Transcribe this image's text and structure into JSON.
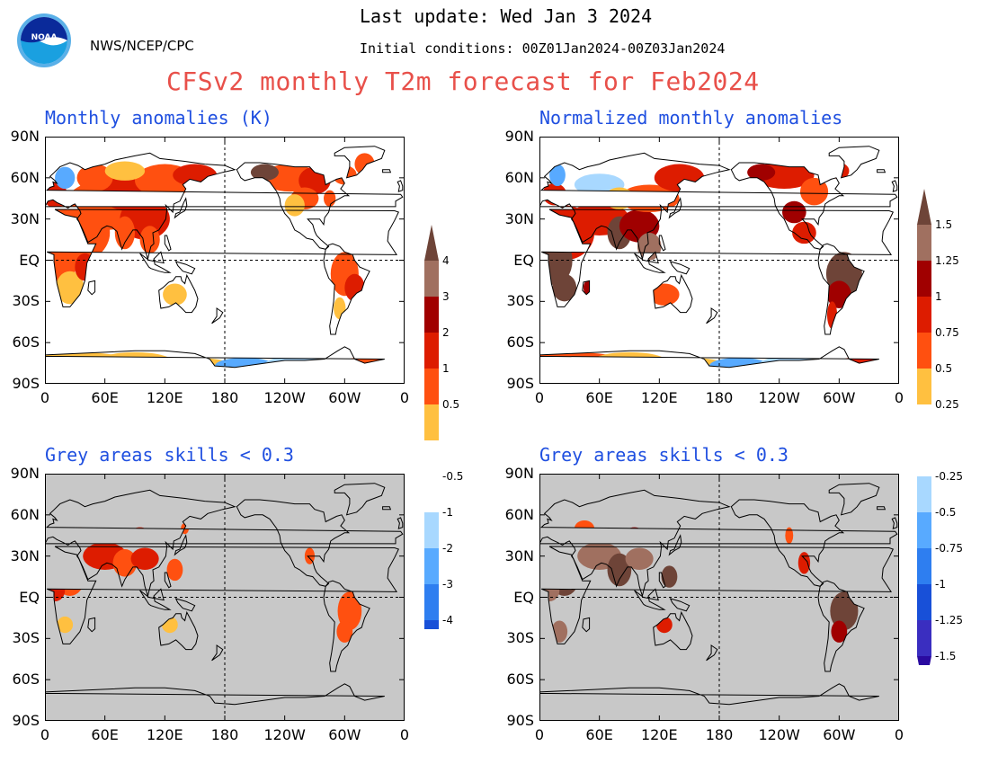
{
  "header": {
    "last_update": "Last update: Wed Jan 3 2024",
    "org": "NWS/NCEP/CPC",
    "initial_conditions": "Initial conditions: 00Z01Jan2024-00Z03Jan2024",
    "title": "CFSv2 monthly T2m forecast for Feb2024",
    "logo_text": "NOAA"
  },
  "axes": {
    "lat_labels": [
      "90N",
      "60N",
      "30N",
      "EQ",
      "30S",
      "60S",
      "90S"
    ],
    "lon_labels": [
      "0",
      "60E",
      "120E",
      "180",
      "120W",
      "60W",
      "0"
    ]
  },
  "panels": [
    {
      "title": "Monthly anomalies (K)"
    },
    {
      "title": "Normalized monthly anomalies"
    },
    {
      "title": "Grey areas skills < 0.3"
    },
    {
      "title": "Grey areas skills < 0.3"
    }
  ],
  "colorbar_left": {
    "labels": [
      "4",
      "3",
      "2",
      "1",
      "0.5",
      "-0.5",
      "-1",
      "-2",
      "-3",
      "-4"
    ]
  },
  "colorbar_right": {
    "labels": [
      "1.5",
      "1.25",
      "1",
      "0.75",
      "0.5",
      "0.25",
      "-0.25",
      "-0.5",
      "-0.75",
      "-1",
      "-1.25",
      "-1.5"
    ]
  },
  "colors": {
    "title_red": "#e8504a",
    "panel_title_blue": "#1f4fe0",
    "grey_mask": "#c8c8c8",
    "warm_scale": [
      "#ffc040",
      "#ff5010",
      "#dd1c00",
      "#a00000",
      "#a07060",
      "#6e4438"
    ],
    "cool_scale": [
      "#a8d8ff",
      "#58aaff",
      "#2e7ef0",
      "#1850d8",
      "#3a2ec0",
      "#2a0aa0"
    ]
  }
}
